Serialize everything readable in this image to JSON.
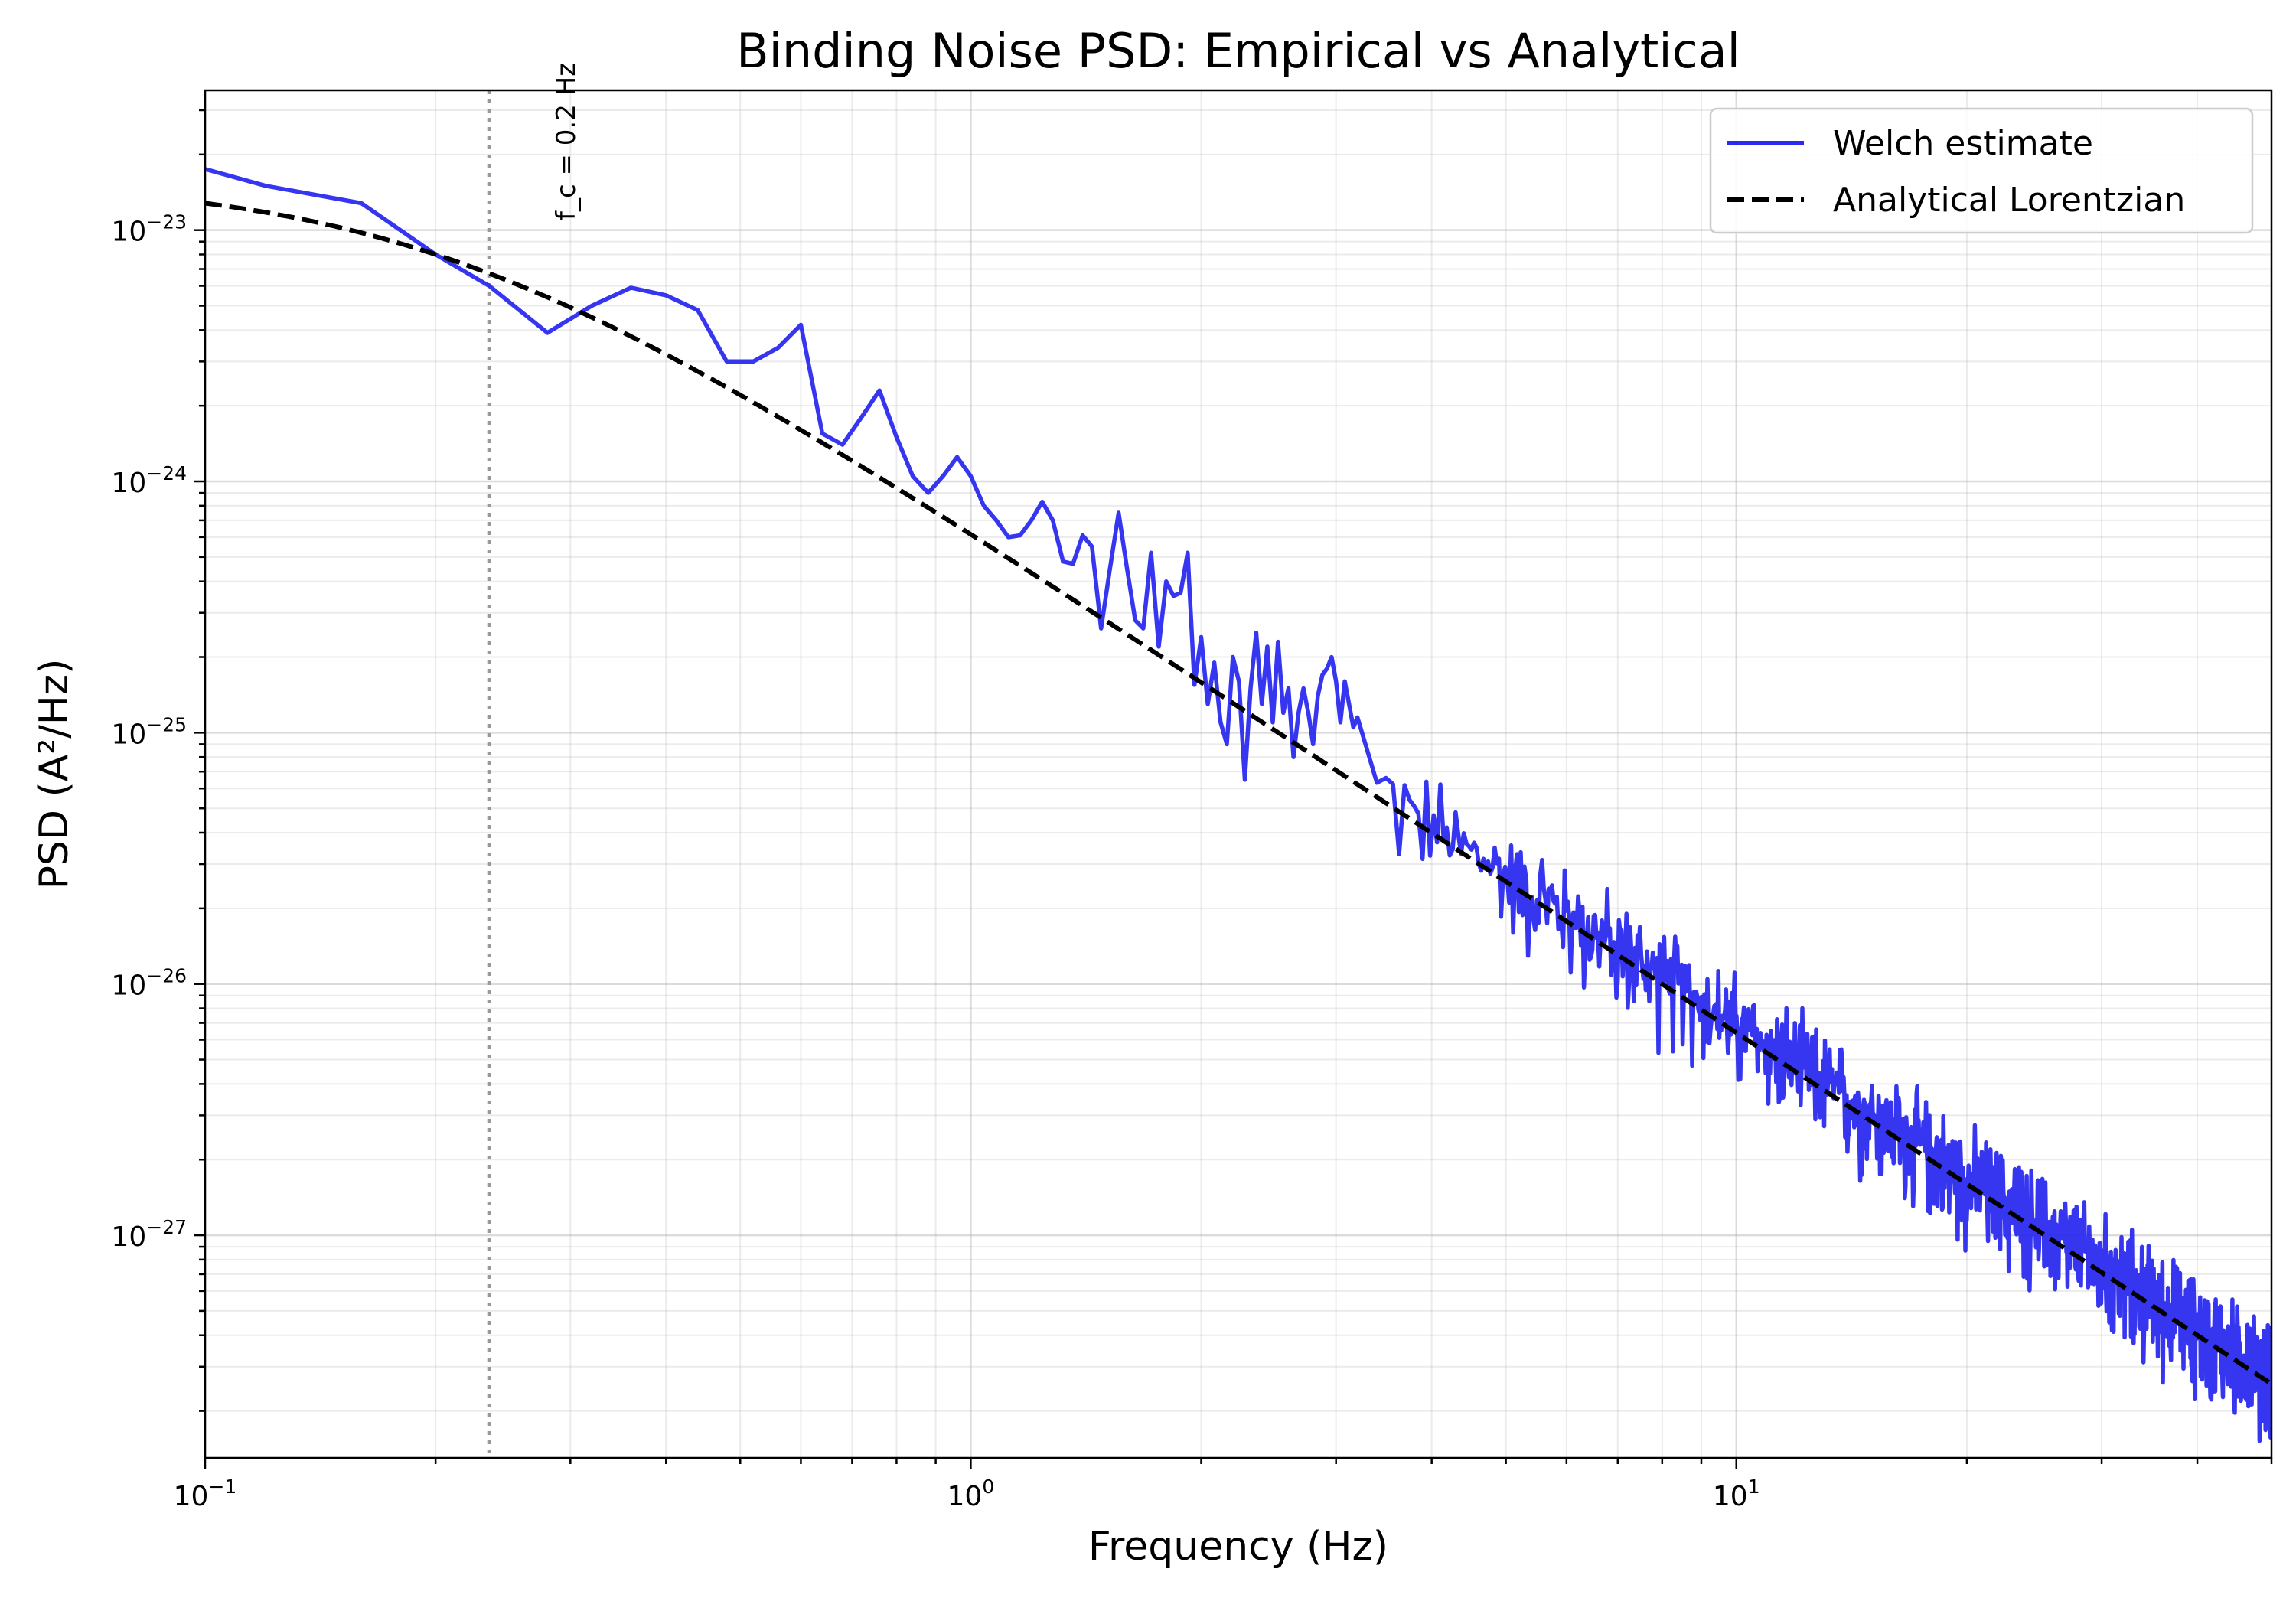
{
  "chart_data": {
    "type": "line",
    "title": "Binding Noise PSD: Empirical vs Analytical",
    "xlabel": "Frequency (Hz)",
    "ylabel": "PSD (A²/Hz)",
    "x_scale": "log",
    "y_scale": "log",
    "xlim": [
      0.1,
      50
    ],
    "ylim": [
      1.3e-28,
      3.6e-23
    ],
    "grid": "major and minor",
    "legend_position": "top-right",
    "x_tick_labels": [
      {
        "base": "10",
        "exp": "−1",
        "value": 0.1
      },
      {
        "base": "10",
        "exp": "0",
        "value": 1
      },
      {
        "base": "10",
        "exp": "1",
        "value": 10
      }
    ],
    "y_tick_labels": [
      {
        "base": "10",
        "exp": "−23",
        "value": 1e-23
      },
      {
        "base": "10",
        "exp": "−24",
        "value": 1e-24
      },
      {
        "base": "10",
        "exp": "−25",
        "value": 1e-25
      },
      {
        "base": "10",
        "exp": "−26",
        "value": 1e-26
      },
      {
        "base": "10",
        "exp": "−27",
        "value": 1e-27
      }
    ],
    "cutoff_line": {
      "x": 0.235,
      "color": "#999999",
      "label": "f_c = 0.2 Hz"
    },
    "series": [
      {
        "name": "Welch estimate",
        "color": "#2b2bf0",
        "style": "solid",
        "x": [
          0.1,
          0.12,
          0.16,
          0.2,
          0.235,
          0.28,
          0.32,
          0.36,
          0.4,
          0.44,
          0.48,
          0.52,
          0.56,
          0.6,
          0.64,
          0.68,
          0.72,
          0.76,
          0.8,
          0.84,
          0.88,
          0.92,
          0.96,
          1.0,
          1.04,
          1.08,
          1.12,
          1.16,
          1.2,
          1.24,
          1.28,
          1.32,
          1.36,
          1.4,
          1.44,
          1.48,
          1.52,
          1.56,
          1.6,
          1.64,
          1.68,
          1.72,
          1.76,
          1.8,
          1.84,
          1.88,
          1.92,
          1.96,
          2.0,
          2.04,
          2.08,
          2.12,
          2.16,
          2.2,
          2.24,
          2.28,
          2.32,
          2.36,
          2.4,
          2.44,
          2.48,
          2.52,
          2.56,
          2.6,
          2.64,
          2.68,
          2.72,
          2.76,
          2.8,
          2.84,
          2.88,
          2.92,
          2.96,
          3.0,
          3.04,
          3.08,
          3.12,
          3.16,
          3.2
        ],
        "y": [
          1.75e-23,
          1.5e-23,
          1.28e-23,
          8e-24,
          6e-24,
          3.9e-24,
          5e-24,
          5.9e-24,
          5.5e-24,
          4.8e-24,
          3e-24,
          3e-24,
          3.4e-24,
          4.2e-24,
          1.55e-24,
          1.4e-24,
          1.8e-24,
          2.3e-24,
          1.5e-24,
          1.05e-24,
          9e-25,
          1.05e-24,
          1.25e-24,
          1.05e-24,
          8e-25,
          7e-25,
          6e-25,
          6.1e-25,
          7e-25,
          8.3e-25,
          7e-25,
          4.8e-25,
          4.7e-25,
          6.1e-25,
          5.5e-25,
          2.6e-25,
          4.5e-25,
          7.5e-25,
          4.5e-25,
          2.8e-25,
          2.6e-25,
          5.2e-25,
          2.2e-25,
          4e-25,
          3.5e-25,
          3.6e-25,
          5.2e-25,
          1.55e-25,
          2.4e-25,
          1.3e-25,
          1.9e-25,
          1.1e-25,
          9e-26,
          2e-25,
          1.6e-25,
          6.5e-26,
          1.5e-25,
          2.5e-25,
          1.3e-25,
          2.2e-25,
          1.1e-25,
          2.3e-25,
          1.2e-25,
          1.5e-25,
          8e-26,
          1.2e-25,
          1.5e-25,
          1.2e-25,
          9e-26,
          1.4e-25,
          1.7e-25,
          1.8e-25,
          2e-25,
          1.6e-25,
          1.1e-25,
          1.6e-25,
          1.3e-25,
          1.05e-25,
          1.15e-25
        ],
        "noise_continuation": {
          "from_hz": 3.2,
          "to_hz": 50,
          "points": 1100,
          "spread_decades_low": 0.35,
          "spread_decades_high": 0.25
        }
      },
      {
        "name": "Analytical Lorentzian",
        "color": "#000000",
        "style": "dashed",
        "model": "A / (1 + (f/fc)^2)",
        "A": 1.6e-23,
        "fc": 0.2
      }
    ]
  }
}
